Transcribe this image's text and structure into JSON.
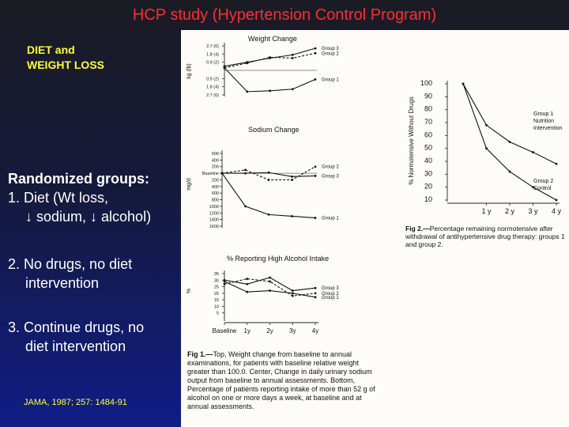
{
  "slide": {
    "title": "HCP study (Hypertension Control Program)",
    "subheading": [
      "DIET and",
      "WEIGHT LOSS"
    ],
    "randomized_heading": "Randomized groups:",
    "group1": [
      "1. Diet (Wt loss,",
      "↓ sodium, ↓ alcohol)"
    ],
    "group2": [
      "2. No drugs, no diet",
      "intervention"
    ],
    "group3": [
      "3. Continue drugs, no",
      "diet intervention"
    ],
    "citation": "JAMA, 1987; 257: 1484-91",
    "colors": {
      "title": "#ff2c2c",
      "accent": "#ffff33",
      "body": "#ffffff"
    }
  },
  "figures": {
    "fig1_caption_lead": "Fig 1.—",
    "fig1_caption": "Top, Weight change from baseline to annual examinations, for patients with baseline relative weight greater than 100.0. Center, Change in daily urinary sodium output from baseline to annual assessments. Bottom, Percentage of patients reporting intake of more than 52 g of alcohol on one or more days a week, at baseline and at annual assessments.",
    "fig2_caption_lead": "Fig 2.—",
    "fig2_caption": "Percentage remaining normotensive after withdrawal of antihypertensive drug therapy: groups 1 and group 2."
  },
  "chart_data": [
    {
      "type": "line",
      "title": "Weight Change",
      "ylabel": "kg (lb)",
      "y_tick_labels": [
        "2.7 (6)",
        "1.8 (4)",
        "0.9 (2)",
        "0.9 (2)",
        "1.8 (4)",
        "2.7 (6)"
      ],
      "y_tick_values": [
        3,
        2,
        1,
        -1,
        -2,
        -3
      ],
      "ylim": [
        -3,
        3
      ],
      "x": [
        0,
        1,
        2,
        3,
        4
      ],
      "series": [
        {
          "name": "Group 3",
          "values": [
            0.5,
            1.0,
            1.5,
            1.9,
            2.7
          ]
        },
        {
          "name": "Group 2",
          "values": [
            0.3,
            0.9,
            1.6,
            1.5,
            2.1
          ]
        },
        {
          "name": "Group 1",
          "values": [
            0.3,
            -2.6,
            -2.5,
            -2.3,
            -1.1
          ]
        }
      ]
    },
    {
      "type": "line",
      "title": "Sodium Change",
      "ylabel": "mg/d",
      "y_tick_labels": [
        "600",
        "400",
        "200",
        "Baseline",
        "200",
        "400",
        "600",
        "800",
        "1000",
        "1200",
        "1400",
        "1600"
      ],
      "y_tick_values": [
        600,
        400,
        200,
        0,
        -200,
        -400,
        -600,
        -800,
        -1000,
        -1200,
        -1400,
        -1600
      ],
      "ylim": [
        -1600,
        600
      ],
      "x": [
        0,
        1,
        2,
        3,
        4
      ],
      "series": [
        {
          "name": "Group 2",
          "values": [
            0,
            100,
            -200,
            -200,
            200
          ]
        },
        {
          "name": "Group 3",
          "values": [
            0,
            0,
            20,
            -100,
            -80
          ]
        },
        {
          "name": "Group 1",
          "values": [
            0,
            -1000,
            -1250,
            -1300,
            -1350
          ]
        }
      ]
    },
    {
      "type": "line",
      "title": "% Reporting High Alcohol Intake",
      "ylabel": "%",
      "x_tick_labels": [
        "Baseline",
        "1y",
        "2y",
        "3y",
        "4y"
      ],
      "y_tick_labels": [
        "35",
        "30",
        "25",
        "20",
        "15",
        "10",
        "5"
      ],
      "y_tick_values": [
        35,
        30,
        25,
        20,
        15,
        10,
        5
      ],
      "ylim": [
        0,
        35
      ],
      "x": [
        0,
        1,
        2,
        3,
        4
      ],
      "series": [
        {
          "name": "Group 3",
          "values": [
            30,
            27,
            32,
            22,
            24
          ]
        },
        {
          "name": "Group 2",
          "values": [
            27,
            31,
            29,
            18,
            20
          ]
        },
        {
          "name": "Group 1",
          "values": [
            29,
            21,
            22,
            20,
            17
          ]
        }
      ]
    },
    {
      "type": "line",
      "title": "",
      "ylabel": "% Normotensive Without Drugs",
      "x_tick_labels": [
        "1 y",
        "2 y",
        "3 y",
        "4 y"
      ],
      "y_tick_labels": [
        "100",
        "90",
        "80",
        "70",
        "60",
        "50",
        "40",
        "30",
        "20",
        "10"
      ],
      "y_tick_values": [
        100,
        90,
        80,
        70,
        60,
        50,
        40,
        30,
        20,
        10
      ],
      "ylim": [
        10,
        100
      ],
      "x": [
        0,
        1,
        2,
        3,
        4
      ],
      "series": [
        {
          "name": "Group 1 Nutrition Intervention",
          "values": [
            100,
            68,
            55,
            47,
            38
          ]
        },
        {
          "name": "Group 2 Control",
          "values": [
            100,
            50,
            32,
            20,
            10
          ]
        }
      ],
      "series_label_lines": [
        [
          "Group 1",
          "Nutrition",
          "Intervention"
        ],
        [
          "Group 2",
          "Control"
        ]
      ]
    }
  ]
}
